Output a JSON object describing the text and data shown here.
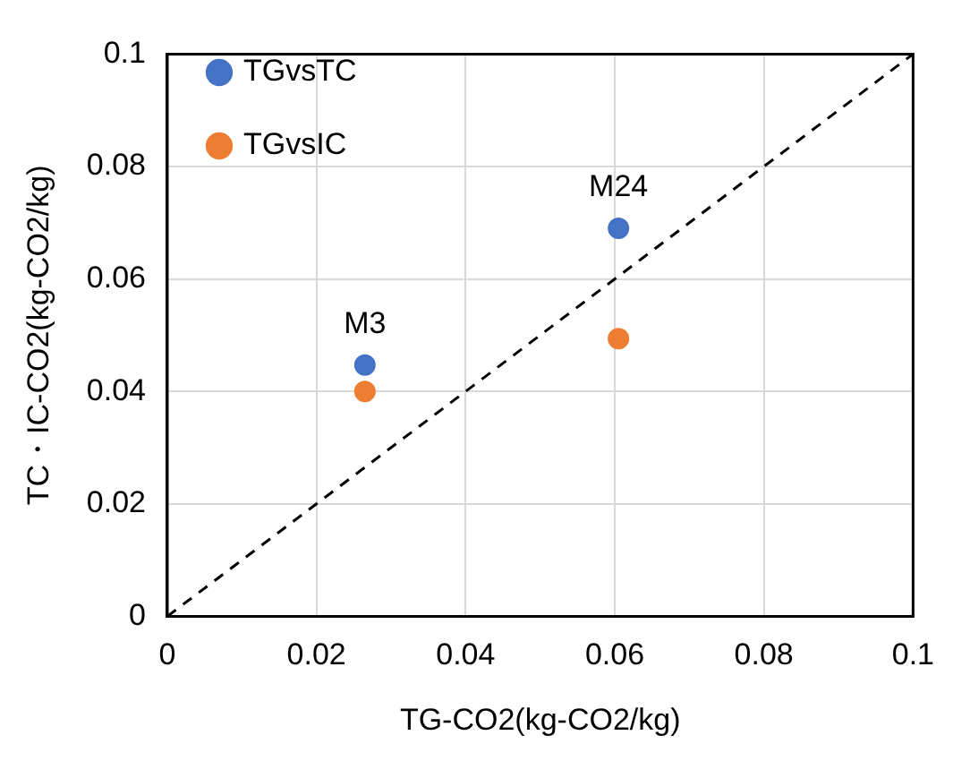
{
  "chart_data": {
    "type": "scatter",
    "xlabel": "TG-CO2(kg-CO2/kg)",
    "ylabel": "TC・IC-CO2(kg-CO2/kg)",
    "xlim": [
      0,
      0.1
    ],
    "xticks": [
      0,
      0.02,
      0.04,
      0.06,
      0.08,
      0.1
    ],
    "ylim": [
      0,
      0.1
    ],
    "yticks": [
      0,
      0.02,
      0.04,
      0.06,
      0.08,
      0.1
    ],
    "grid": true,
    "legend": "top left",
    "marker": "circle",
    "series": [
      {
        "name": "TGvsTC",
        "color": "#4472c4",
        "x": [
          0.0265,
          0.0605
        ],
        "values": [
          0.0447,
          0.069
        ]
      },
      {
        "name": "TGvsIC",
        "color": "#ed7d31",
        "x": [
          0.0265,
          0.0605
        ],
        "values": [
          0.04,
          0.0494
        ]
      },
      {
        "type": "line",
        "color": "#000000",
        "line_style": "dashed",
        "marker": "none",
        "x": [
          0,
          0.1
        ],
        "values": [
          0,
          0.1
        ]
      }
    ],
    "annotations": [
      {
        "text": "M3",
        "x": 0.0265,
        "y": 0.0447
      },
      {
        "text": "M24",
        "x": 0.0605,
        "y": 0.069
      }
    ]
  }
}
